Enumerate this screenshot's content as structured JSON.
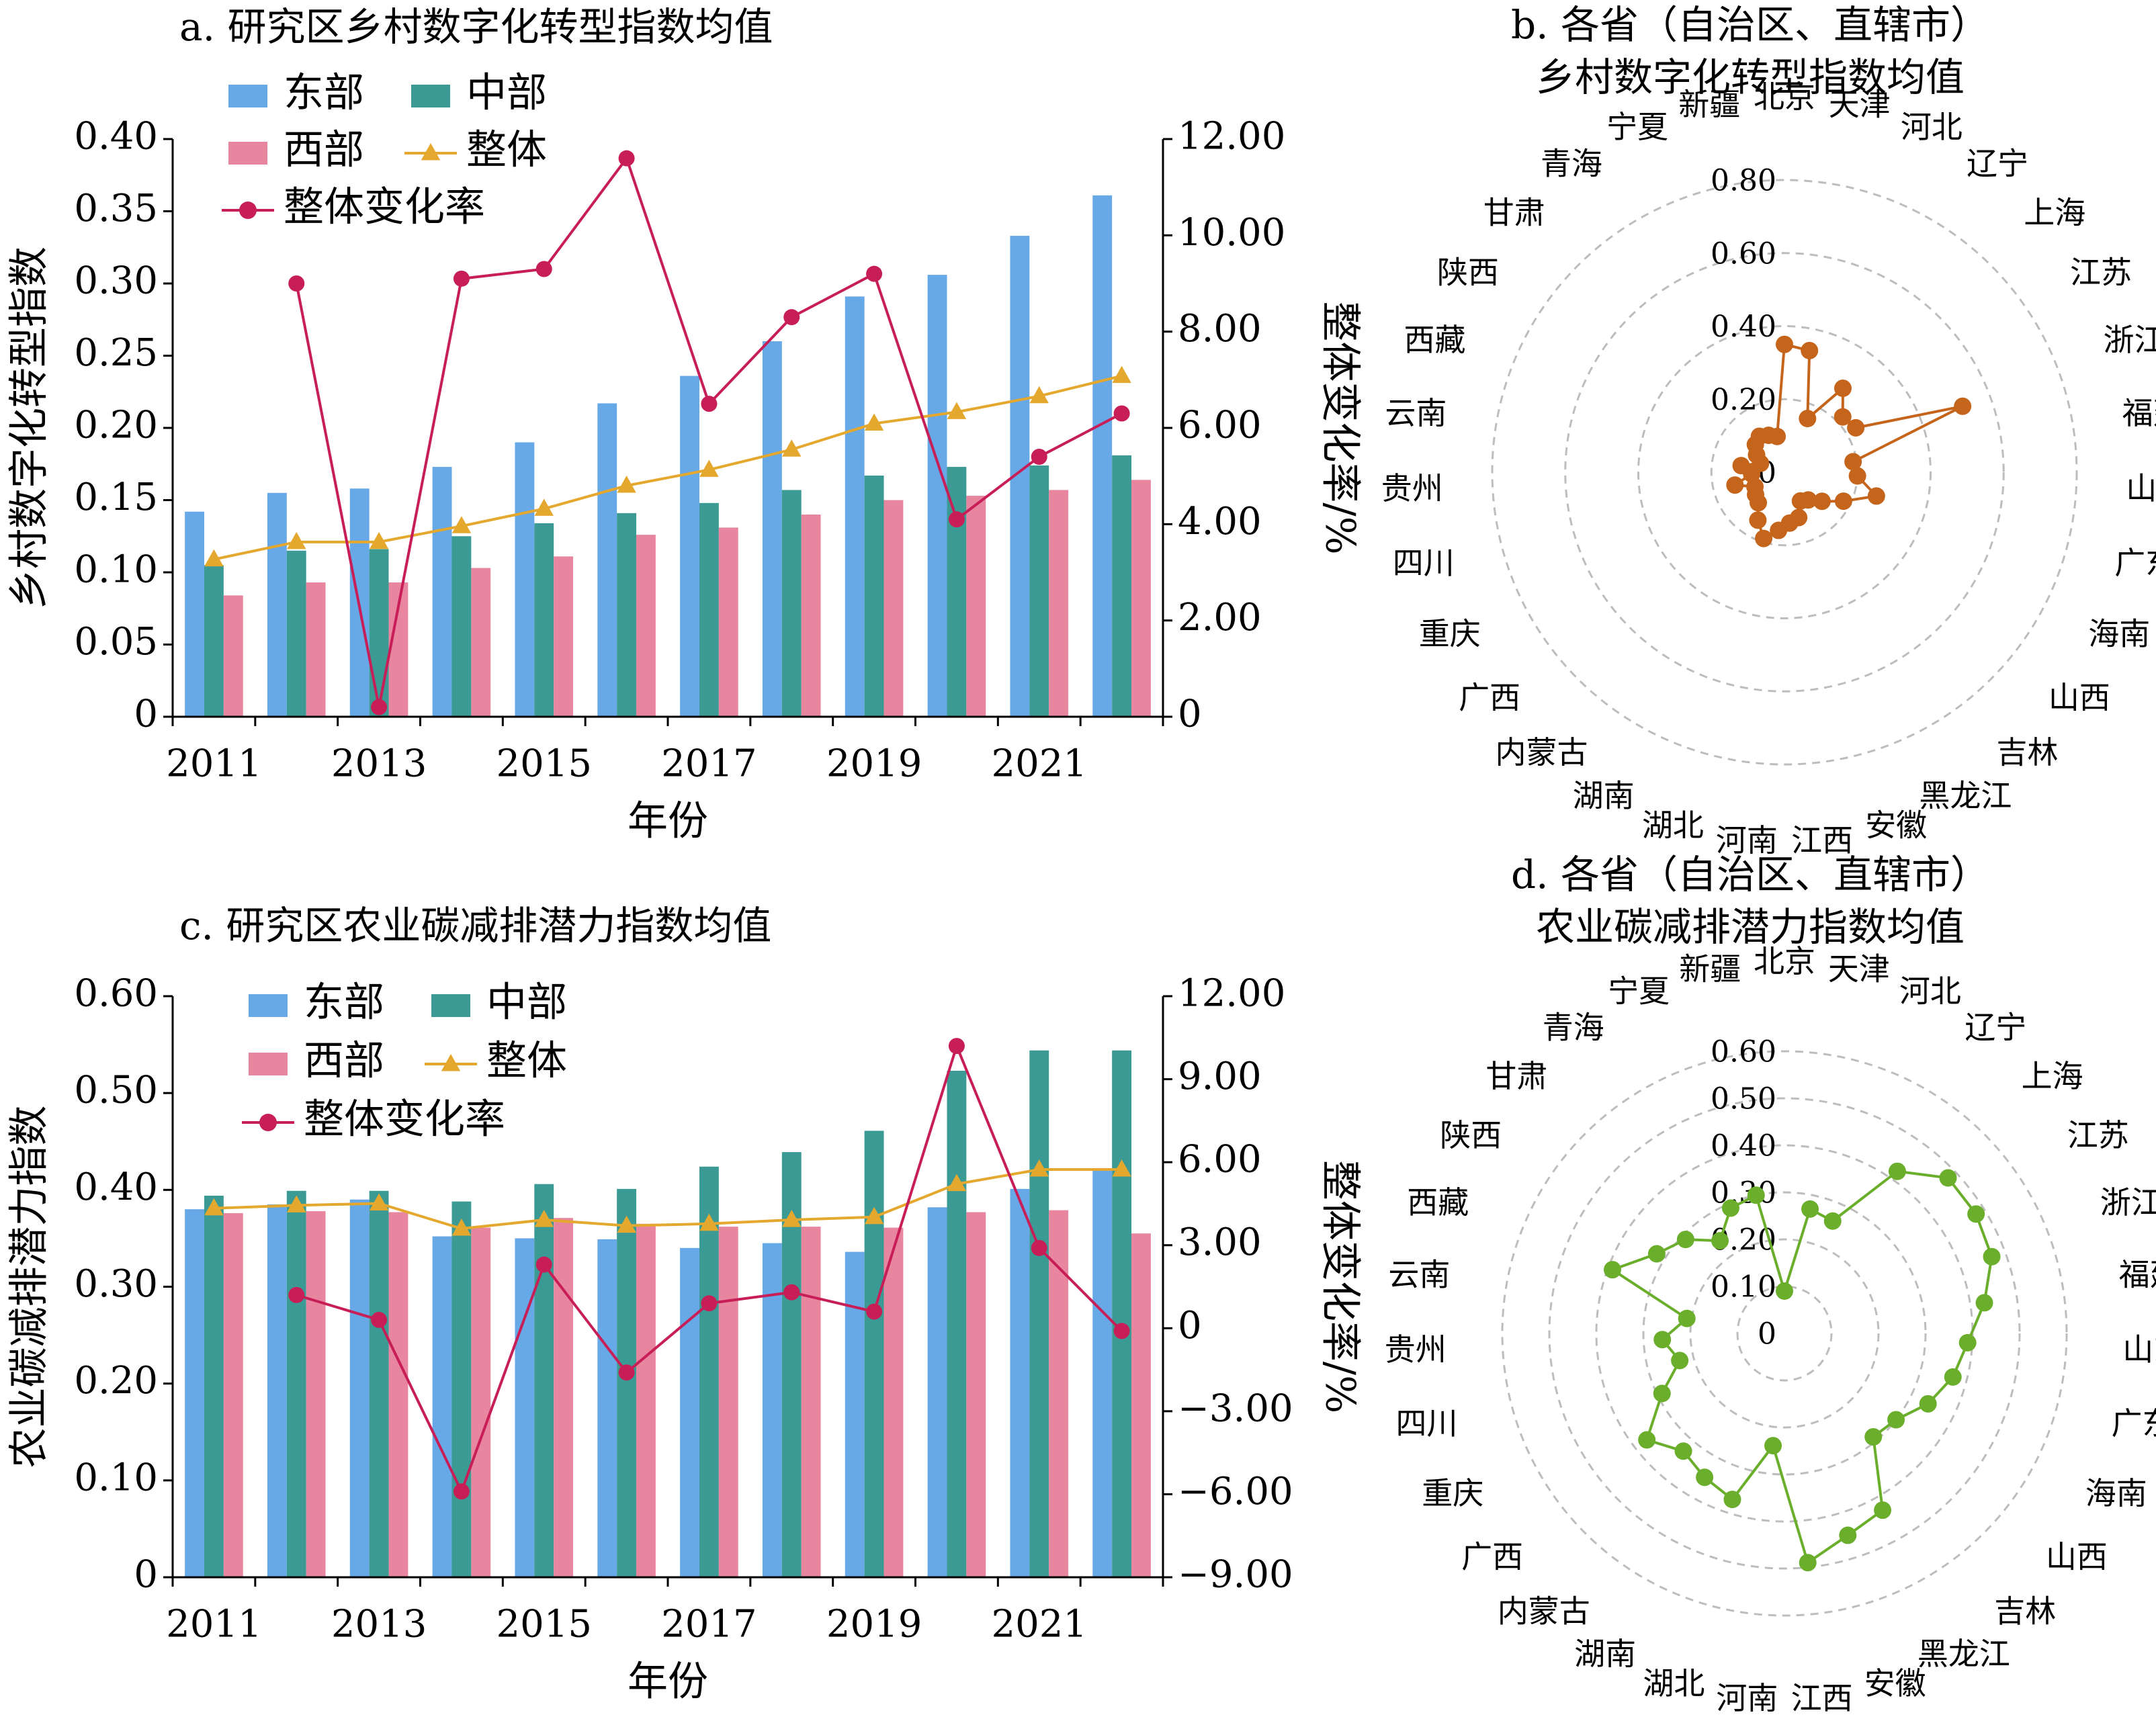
{
  "colors": {
    "east": "#67A8E6",
    "central": "#3B9A94",
    "west": "#E9869F",
    "overall": "#E5A82E",
    "rate": "#C81E58",
    "radar_b": "#C5641B",
    "radar_d": "#6AAE2C"
  },
  "provinces": [
    "北京",
    "天津",
    "河北",
    "辽宁",
    "上海",
    "江苏",
    "浙江",
    "福建",
    "山东",
    "广东",
    "海南",
    "山西",
    "吉林",
    "黑龙江",
    "安徽",
    "江西",
    "河南",
    "湖北",
    "湖南",
    "内蒙古",
    "广西",
    "重庆",
    "四川",
    "贵州",
    "云南",
    "西藏",
    "陕西",
    "甘肃",
    "青海",
    "宁夏",
    "新疆"
  ],
  "chart_data": [
    {
      "type": "bar",
      "title": "a. 研究区乡村数字化转型指数均值",
      "xlabel": "年份",
      "ylabel": "乡村数字化转型指数",
      "y2label": "整体变化率/%",
      "x": [
        2011,
        2012,
        2013,
        2014,
        2015,
        2016,
        2017,
        2018,
        2019,
        2020,
        2021,
        2022
      ],
      "x_tick_labels": [
        "2011",
        "2013",
        "2015",
        "2017",
        "2019",
        "2021"
      ],
      "ylim": [
        0,
        0.4
      ],
      "y_ticks": [
        "0",
        "0.05",
        "0.10",
        "0.15",
        "0.20",
        "0.25",
        "0.30",
        "0.35",
        "0.40"
      ],
      "y2lim": [
        0,
        12
      ],
      "y2_ticks": [
        "0",
        "2.00",
        "4.00",
        "6.00",
        "8.00",
        "10.00",
        "12.00"
      ],
      "series": [
        {
          "name": "东部",
          "type": "bar",
          "axis": "left",
          "values": [
            0.142,
            0.155,
            0.158,
            0.173,
            0.19,
            0.217,
            0.236,
            0.26,
            0.291,
            0.306,
            0.333,
            0.361
          ]
        },
        {
          "name": "中部",
          "type": "bar",
          "axis": "left",
          "values": [
            0.105,
            0.115,
            0.116,
            0.125,
            0.134,
            0.141,
            0.148,
            0.157,
            0.167,
            0.173,
            0.174,
            0.181
          ]
        },
        {
          "name": "西部",
          "type": "bar",
          "axis": "left",
          "values": [
            0.084,
            0.093,
            0.093,
            0.103,
            0.111,
            0.126,
            0.131,
            0.14,
            0.15,
            0.153,
            0.157,
            0.164
          ]
        },
        {
          "name": "整体",
          "type": "line",
          "axis": "left",
          "values": [
            0.109,
            0.121,
            0.121,
            0.132,
            0.144,
            0.16,
            0.171,
            0.185,
            0.203,
            0.211,
            0.222,
            0.236
          ]
        },
        {
          "name": "整体变化率",
          "type": "line",
          "axis": "right",
          "values": [
            null,
            9.0,
            0.2,
            9.1,
            9.3,
            11.6,
            6.5,
            8.3,
            9.2,
            4.1,
            5.4,
            6.3
          ]
        }
      ]
    },
    {
      "type": "radar",
      "title": "b. 各省（自治区、直辖市）乡村数字化转型指数均值",
      "rlim": [
        0,
        0.8
      ],
      "r_ticks": [
        "0",
        "0.20",
        "0.40",
        "0.60",
        "0.80"
      ],
      "values": [
        0.35,
        0.34,
        0.16,
        0.28,
        0.22,
        0.23,
        0.52,
        0.19,
        0.2,
        0.26,
        0.18,
        0.13,
        0.1,
        0.09,
        0.13,
        0.14,
        0.16,
        0.19,
        0.15,
        0.11,
        0.1,
        0.09,
        0.14,
        0.09,
        0.12,
        0.07,
        0.09,
        0.11,
        0.12,
        0.11,
        0.1
      ]
    },
    {
      "type": "bar",
      "title": "c. 研究区农业碳减排潜力指数均值",
      "xlabel": "年份",
      "ylabel": "农业碳减排潜力指数",
      "y2label": "整体变化率/%",
      "x": [
        2011,
        2012,
        2013,
        2014,
        2015,
        2016,
        2017,
        2018,
        2019,
        2020,
        2021,
        2022
      ],
      "x_tick_labels": [
        "2011",
        "2013",
        "2015",
        "2017",
        "2019",
        "2021"
      ],
      "ylim": [
        0,
        0.6
      ],
      "y_ticks": [
        "0",
        "0.10",
        "0.20",
        "0.30",
        "0.40",
        "0.50",
        "0.60"
      ],
      "y2lim": [
        -9,
        12
      ],
      "y2_ticks": [
        "-9.00",
        "-6.00",
        "-3.00",
        "0",
        "3.00",
        "6.00",
        "9.00",
        "12.00"
      ],
      "series": [
        {
          "name": "东部",
          "type": "bar",
          "axis": "left",
          "values": [
            0.38,
            0.385,
            0.39,
            0.352,
            0.35,
            0.349,
            0.34,
            0.345,
            0.336,
            0.382,
            0.401,
            0.422
          ]
        },
        {
          "name": "中部",
          "type": "bar",
          "axis": "left",
          "values": [
            0.394,
            0.399,
            0.399,
            0.388,
            0.406,
            0.401,
            0.424,
            0.439,
            0.461,
            0.523,
            0.544,
            0.544
          ]
        },
        {
          "name": "西部",
          "type": "bar",
          "axis": "left",
          "values": [
            0.376,
            0.378,
            0.377,
            0.361,
            0.371,
            0.365,
            0.362,
            0.362,
            0.361,
            0.377,
            0.379,
            0.355
          ]
        },
        {
          "name": "整体",
          "type": "line",
          "axis": "left",
          "values": [
            0.381,
            0.384,
            0.386,
            0.36,
            0.369,
            0.363,
            0.365,
            0.369,
            0.372,
            0.406,
            0.421,
            0.421
          ]
        },
        {
          "name": "整体变化率",
          "type": "line",
          "axis": "right",
          "values": [
            null,
            1.2,
            0.3,
            -5.9,
            2.3,
            -1.6,
            0.9,
            1.3,
            0.6,
            10.2,
            2.9,
            -0.1
          ]
        }
      ]
    },
    {
      "type": "radar",
      "title": "d. 各省（自治区、直辖市）农业碳减排潜力指数均值",
      "rlim": [
        0,
        0.6
      ],
      "r_ticks": [
        "0",
        "0.10",
        "0.20",
        "0.30",
        "0.40",
        "0.50",
        "0.60"
      ],
      "values": [
        0.09,
        0.27,
        0.26,
        0.42,
        0.48,
        0.48,
        0.47,
        0.43,
        0.39,
        0.37,
        0.34,
        0.3,
        0.29,
        0.43,
        0.45,
        0.49,
        0.24,
        0.37,
        0.35,
        0.33,
        0.37,
        0.29,
        0.23,
        0.26,
        0.21,
        0.39,
        0.32,
        0.29,
        0.24,
        0.29,
        0.3
      ]
    }
  ]
}
